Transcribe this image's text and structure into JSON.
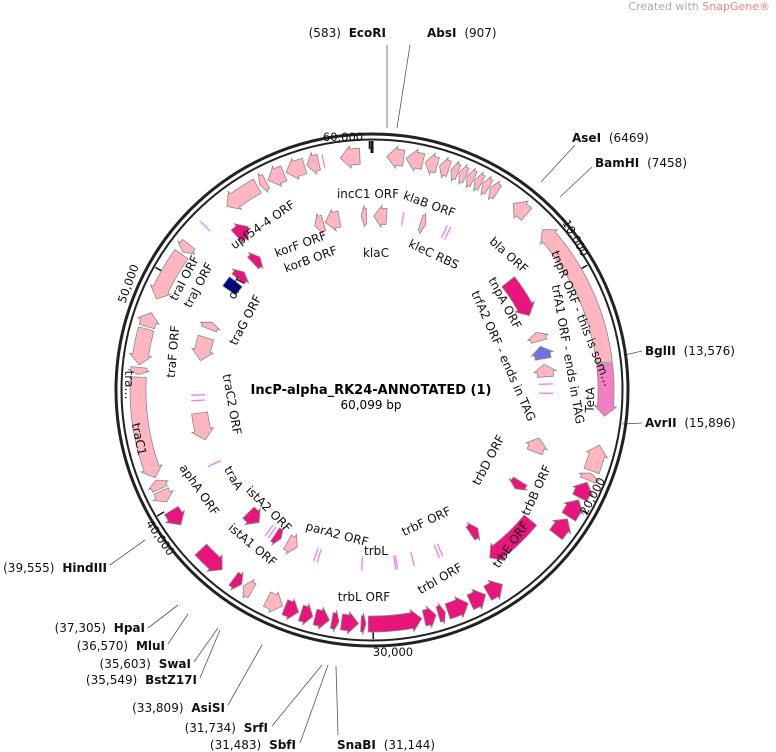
{
  "credit": {
    "prefix": "Created with ",
    "brand": "SnapGene®"
  },
  "plasmid": {
    "name": "IncP-alpha_RK24-ANNOTATED (1)",
    "length_label": "60,099 bp",
    "total_bp": 60099
  },
  "ticks": [
    "60,000",
    "10,000",
    "20,000",
    "30,000",
    "40,000",
    "50,000"
  ],
  "colors": {
    "light": "#ffb6c1",
    "dark": "#e8157c",
    "blue": "#7070e0",
    "navy": "#00008b",
    "teta": "#f37fc3",
    "outline": "#8a8a8a",
    "ring": "#222222"
  },
  "sites": [
    {
      "name": "EcoRI",
      "pos": "(583)"
    },
    {
      "name": "AbsI",
      "pos": "(907)"
    },
    {
      "name": "AseI",
      "pos": "(6469)"
    },
    {
      "name": "BamHI",
      "pos": "(7458)"
    },
    {
      "name": "BglII",
      "pos": "(13,576)"
    },
    {
      "name": "AvrII",
      "pos": "(15,896)"
    },
    {
      "name": "HindIII",
      "pos": "(39,555)"
    },
    {
      "name": "HpaI",
      "pos": "(37,305)"
    },
    {
      "name": "MluI",
      "pos": "(36,570)"
    },
    {
      "name": "SwaI",
      "pos": "(35,603)"
    },
    {
      "name": "BstZ17I",
      "pos": "(35,549)"
    },
    {
      "name": "AsiSI",
      "pos": "(33,809)"
    },
    {
      "name": "SrfI",
      "pos": "(31,734)"
    },
    {
      "name": "SbfI",
      "pos": "(31,483)"
    },
    {
      "name": "SnaBI",
      "pos": "(31,144)"
    }
  ],
  "labels": {
    "incC1": "incC1 ORF",
    "klaB": "klaB ORF",
    "bla": "bla ORF",
    "upf": "upf54-4 ORF",
    "korF": "korF ORF",
    "korB": "korB ORF",
    "klaC": "klaC",
    "kleC": "kleC RBS",
    "tnpA": "tnpA ORF",
    "trfA2": "trfA2 ORF - ends in TAG",
    "trfA1": "trfA1 ORF - ends in TAG",
    "tetA": "TetA",
    "tnpR": "tnpR ORF - this is som…",
    "traI": "traI ORF",
    "traJ": "traJ ORF",
    "oriT": "oriT",
    "traG": "traG ORF",
    "traF": "traF ORF",
    "traX": "tra…",
    "traC1": "traC1",
    "traC2": "traC2 ORF",
    "traA": "traA",
    "apha": "aphA ORF",
    "istA2": "istA2 ORF",
    "istA1": "istA1 ORF",
    "parA2": "parA2 ORF",
    "trbL": "trbL",
    "trbLorf": "trbL ORF",
    "trbF": "trbF ORF",
    "trbI": "trbI ORF",
    "trbD": "trbD ORF",
    "trbB": "trbB ORF",
    "trbE": "trbE ORF"
  },
  "features": [
    [
      600,
      1300,
      "ccw",
      0,
      "light"
    ],
    [
      1400,
      2100,
      "ccw",
      0,
      "light"
    ],
    [
      2200,
      2700,
      "ccw",
      0,
      "light"
    ],
    [
      2800,
      3200,
      "ccw",
      0,
      "light"
    ],
    [
      3300,
      3600,
      "ccw",
      0,
      "light"
    ],
    [
      3650,
      3950,
      "ccw",
      0,
      "light"
    ],
    [
      4000,
      4300,
      "ccw",
      0,
      "light"
    ],
    [
      4350,
      4650,
      "ccw",
      0,
      "light"
    ],
    [
      4700,
      5000,
      "ccw",
      0,
      "light"
    ],
    [
      5050,
      5400,
      "ccw",
      0,
      "light"
    ],
    [
      6200,
      6900,
      "ccw",
      0,
      "light"
    ],
    [
      7800,
      13900,
      "ccw",
      0,
      "light"
    ],
    [
      13950,
      16100,
      "cw",
      0,
      "teta"
    ],
    [
      17300,
      18400,
      "ccw",
      0,
      "light"
    ],
    [
      18500,
      18800,
      "ccw",
      0,
      "light"
    ],
    [
      18900,
      19600,
      "ccw",
      0,
      "dark"
    ],
    [
      19700,
      20500,
      "ccw",
      0,
      "dark"
    ],
    [
      20600,
      21400,
      "ccw",
      0,
      "dark"
    ],
    [
      21600,
      24200,
      "cw",
      1,
      "dark"
    ],
    [
      24400,
      25100,
      "ccw",
      0,
      "dark"
    ],
    [
      25200,
      25900,
      "ccw",
      0,
      "dark"
    ],
    [
      26000,
      26900,
      "ccw",
      0,
      "dark"
    ],
    [
      27000,
      27300,
      "ccw",
      0,
      "dark"
    ],
    [
      27400,
      27900,
      "ccw",
      0,
      "dark"
    ],
    [
      28000,
      30200,
      "ccw",
      0,
      "dark"
    ],
    [
      30300,
      30500,
      "ccw",
      0,
      "dark"
    ],
    [
      30600,
      31300,
      "ccw",
      0,
      "dark"
    ],
    [
      31400,
      31700,
      "ccw",
      0,
      "dark"
    ],
    [
      31800,
      32400,
      "ccw",
      0,
      "dark"
    ],
    [
      32500,
      33000,
      "ccw",
      0,
      "dark"
    ],
    [
      33100,
      33700,
      "ccw",
      0,
      "dark"
    ],
    [
      33800,
      34500,
      "ccw",
      0,
      "light"
    ],
    [
      35200,
      35600,
      "cw",
      0,
      "light"
    ],
    [
      35700,
      36100,
      "ccw",
      0,
      "dark"
    ],
    [
      36700,
      37900,
      "ccw",
      0,
      "dark"
    ],
    [
      39200,
      39900,
      "ccw",
      0,
      "dark"
    ],
    [
      40300,
      40800,
      "ccw",
      0,
      "light"
    ],
    [
      40900,
      41300,
      "cw",
      0,
      "light"
    ],
    [
      41400,
      45600,
      "ccw",
      0,
      "light"
    ],
    [
      45700,
      46000,
      "ccw",
      0,
      "light"
    ],
    [
      46100,
      47600,
      "ccw",
      0,
      "light"
    ],
    [
      47700,
      48300,
      "cw",
      0,
      "light"
    ],
    [
      48900,
      51000,
      "ccw",
      0,
      "light"
    ],
    [
      51100,
      51500,
      "ccw",
      0,
      "light"
    ],
    [
      53700,
      55200,
      "ccw",
      0,
      "light"
    ],
    [
      55300,
      55600,
      "ccw",
      0,
      "light"
    ],
    [
      55700,
      56400,
      "ccw",
      0,
      "light"
    ],
    [
      56500,
      57300,
      "ccw",
      0,
      "light"
    ],
    [
      57400,
      57900,
      "ccw",
      0,
      "light"
    ],
    [
      58800,
      59600,
      "ccw",
      0,
      "light"
    ],
    [
      53200,
      53900,
      "cw",
      1,
      "dark"
    ],
    [
      56900,
      57400,
      "ccw",
      2,
      "light"
    ],
    [
      57500,
      58300,
      "ccw",
      2,
      "light"
    ],
    [
      59500,
      59800,
      "ccw",
      2,
      "light"
    ],
    [
      100,
      800,
      "ccw",
      2,
      "light"
    ],
    [
      2700,
      3000,
      "cw",
      2,
      "light"
    ],
    [
      8600,
      10800,
      "cw",
      2,
      "dark"
    ],
    [
      11800,
      12300,
      "ccw",
      2,
      "light"
    ],
    [
      12600,
      13300,
      "ccw",
      2,
      "blue"
    ],
    [
      13600,
      14300,
      "ccw",
      2,
      "light"
    ],
    [
      17700,
      18500,
      "ccw",
      2,
      "light"
    ],
    [
      20300,
      20800,
      "cw",
      2,
      "dark"
    ],
    [
      23800,
      24300,
      "ccw",
      2,
      "dark"
    ],
    [
      34300,
      34900,
      "ccw",
      2,
      "light"
    ],
    [
      35300,
      35700,
      "ccw",
      2,
      "dark"
    ],
    [
      36800,
      37600,
      "ccw",
      2,
      "dark"
    ],
    [
      42300,
      43800,
      "ccw",
      2,
      "light"
    ],
    [
      46700,
      48000,
      "ccw",
      2,
      "light"
    ],
    [
      48500,
      48900,
      "cw",
      2,
      "light"
    ],
    [
      50900,
      51500,
      "none",
      2,
      "navy"
    ],
    [
      51700,
      52200,
      "cw",
      2,
      "dark"
    ],
    [
      52900,
      53400,
      "cw",
      2,
      "dark"
    ]
  ],
  "marks": [
    [
      58100,
      0
    ],
    [
      52500,
      0
    ],
    [
      1700,
      2
    ],
    [
      4100,
      2
    ],
    [
      4300,
      2
    ],
    [
      44500,
      2
    ],
    [
      44800,
      2
    ],
    [
      40900,
      2
    ],
    [
      35900,
      2
    ],
    [
      36100,
      2
    ],
    [
      33000,
      2
    ],
    [
      33200,
      2
    ],
    [
      30600,
      2
    ],
    [
      28700,
      2
    ],
    [
      28800,
      2
    ],
    [
      27800,
      2
    ],
    [
      26200,
      2
    ],
    [
      26400,
      2
    ],
    [
      14700,
      2
    ],
    [
      15200,
      2
    ]
  ]
}
